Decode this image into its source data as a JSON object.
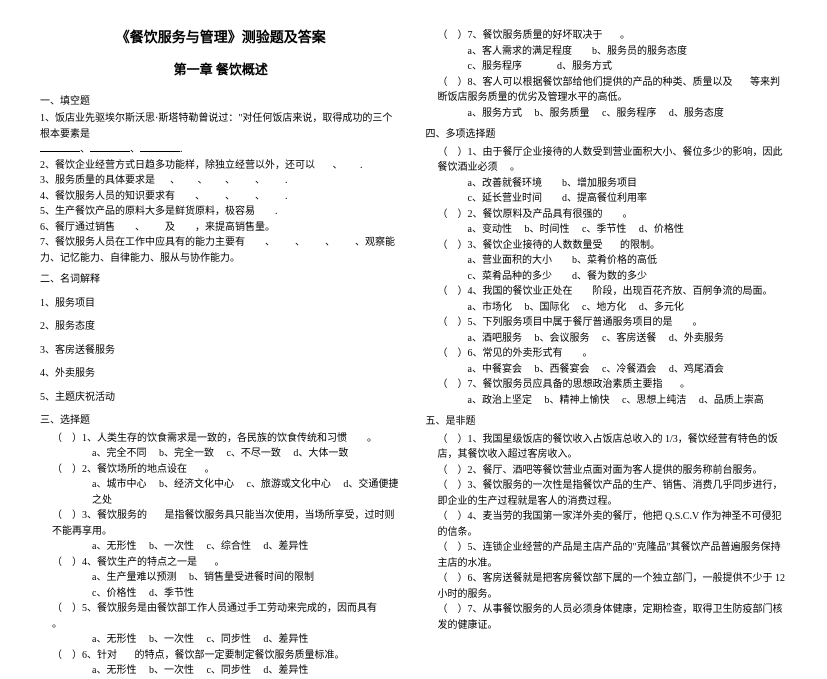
{
  "title": "《餐饮服务与管理》测验题及答案",
  "chapter": "第一章 餐饮概述",
  "left": {
    "sec1_title": "一、填空题",
    "q1": "1、饭店业先驱埃尔斯沃思·斯塔特勒曾说过：\"对任何饭店来说，取得成功的三个根本要素是",
    "q1b": "       、        、       .",
    "q2": "2、餐饮企业经营方式日趋多功能样，除独立经营以外，还可以       、       .",
    "q3": "3、服务质量的具体要求是      、       、       、        、        .",
    "q4": "4、餐饮服务人员的知识要求有        、        、        、        .",
    "q5": "5、生产餐饮产品的原料大多是鲜货原料，极容易        .",
    "q6": "6、餐厅通过销售        、        及        ，来提高销售量。",
    "q7": "7、餐饮服务人员在工作中应具有的能力主要有        、        、        、        、观察能力、记忆能力、自律能力、服从与协作能力。",
    "sec2_title": "二、名词解释",
    "n1": "1、服务项目",
    "n2": "2、服务态度",
    "n3": "3、客房送餐服务",
    "n4": "4、外卖服务",
    "n5": "5、主题庆祝活动",
    "sec3_title": "三、选择题",
    "c1": "（    ）1、人类生存的饮食需求是一致的，各民族的饮食传统和习惯        。",
    "c1o": "a、完全不同     b、完全一致     c、不尽一致     d、大体一致",
    "c2": "（    ）2、餐饮场所的地点设在       。",
    "c2o": "a、城市中心     b、经济文化中心     c、旅游或文化中心     d、交通便捷之处",
    "c3": "（    ）3、餐饮服务的       是指餐饮服务具只能当次使用，当场所享受，过时则不能再享用。",
    "c3o": "a、无形性     b、一次性     c、综合性     d、差异性",
    "c4": "（    ）4、餐饮生产的特点之一是       。",
    "c4o": "a、生产量难以预测     b、销售量受进餐时间的限制",
    "c4o2": "c、价格性     d、季节性",
    "c5": "（    ）5、餐饮服务是由餐饮部工作人员通过手工劳动来完成的，因而具有       。",
    "c5o": "a、无形性     b、一次性     c、同步性     d、差异性",
    "c6": "（    ）6、针对       的特点，餐饮部一定要制定餐饮服务质量标准。",
    "c6o": "a、无形性     b、一次性     c、同步性     d、差异性"
  },
  "right": {
    "r7": "（    ）7、餐饮服务质量的好坏取决于       。",
    "r7o": "a、客人需求的满足程度        b、服务员的服务态度",
    "r7o2": "c、服务程序              d、服务方式",
    "r8": "（    ）8、客人可以根据餐饮部给他们提供的产品的种类、质量以及       等来判断饭店服务质量的优劣及管理水平的高低。",
    "r8o": "a、服务方式     b、服务质量     c、服务程序     d、服务态度",
    "sec4_title": "四、多项选择题",
    "m1": "（    ）1、由于餐厅企业接待的人数受到营业面积大小、餐位多少的影响，因此餐饮酒业必须     。",
    "m1o": "a、改善就餐环境        b、增加服务项目",
    "m1o2": "c、延长营业时间        d、提高餐位利用率",
    "m2": "（    ）2、餐饮原料及产品具有很强的        。",
    "m2o": "a、变动性     b、时间性     c、季节性     d、价格性",
    "m3": "（    ）3、餐饮企业接待的人数数量受       的限制。",
    "m3o": "a、营业面积的大小        b、菜肴价格的高低",
    "m3o2": "c、菜肴品种的多少        d、餐为数的多少",
    "m4": "（    ）4、我国的餐饮业正处在        阶段，出现百花齐放、百舸争流的局面。",
    "m4o": "a、市场化     b、国际化     c、地方化     d、多元化",
    "m5": "（    ）5、下列服务项目中属于餐厅普通服务项目的是        。",
    "m5o": "a、酒吧服务     b、会议服务     c、客房送餐     d、外卖服务",
    "m6": "（    ）6、常见的外卖形式有        。",
    "m6o": "a、中餐宴会     b、西餐宴会     c、冷餐酒会     d、鸡尾酒会",
    "m7": "（    ）7、餐饮服务员应具备的思想政治素质主要指       。",
    "m7o": "a、政治上坚定     b、精神上愉快     c、思想上纯洁     d、品质上崇高",
    "sec5_title": "五、是非题",
    "t1": "（    ）1、我国星级饭店的餐饮收入占饭店总收入的 1/3，餐饮经营有特色的饭店，其餐饮收入超过客房收入。",
    "t2": "（    ）2、餐厅、酒吧等餐饮营业点面对面为客人提供的服务称前台服务。",
    "t3": "（    ）3、餐饮服务的一次性是指餐饮产品的生产、销售、消费几乎同步进行，即企业的生产过程就是客人的消费过程。",
    "t4": "（    ）4、麦当劳的我国第一家洋外卖的餐厅，他把 Q.S.C.V 作为神圣不可侵犯的信条。",
    "t5": "（    ）5、连锁企业经营的产品是主店产品的\"克隆品\"其餐饮产品普遍服务保持主店的水准。",
    "t6": "（    ）6、客房送餐就是把客房餐饮部下属的一个独立部门，一般提供不少于 12 小时的服务。",
    "t7": "（    ）7、从事餐饮服务的人员必须身体健康，定期检查，取得卫生防疫部门核发的健康证。"
  }
}
